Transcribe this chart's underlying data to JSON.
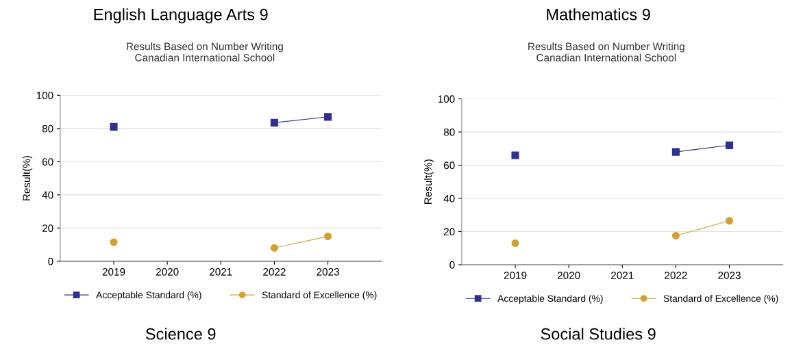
{
  "chart_data": [
    {
      "type": "line",
      "title": "English Language Arts 9",
      "subtitle": "Results Based on Number Writing\nCanadian International School",
      "ylabel": "Result(%)",
      "categories": [
        "2019",
        "2020",
        "2021",
        "2022",
        "2023"
      ],
      "ylim": [
        0,
        100
      ],
      "yticks": [
        0,
        20,
        40,
        60,
        80,
        100
      ],
      "grid": "y",
      "legend": "bottom",
      "annotations": [
        "Science 9"
      ],
      "series": [
        {
          "name": "Acceptable Standard (%)",
          "color": "#2e3192",
          "marker": "square",
          "values": [
            81,
            null,
            null,
            83.5,
            87
          ]
        },
        {
          "name": "Standard of Excellence (%)",
          "color": "#d4a030",
          "marker": "circle",
          "values": [
            11.5,
            null,
            null,
            8,
            15
          ]
        }
      ]
    },
    {
      "type": "line",
      "title": "Mathematics 9",
      "subtitle": "Results Based on Number Writing\nCanadian International School",
      "ylabel": "Result(%)",
      "categories": [
        "2019",
        "2020",
        "2021",
        "2022",
        "2023"
      ],
      "ylim": [
        0,
        100
      ],
      "yticks": [
        0,
        20,
        40,
        60,
        80,
        100
      ],
      "grid": "y",
      "legend": "bottom",
      "annotations": [
        "Social Studies 9"
      ],
      "series": [
        {
          "name": "Acceptable Standard (%)",
          "color": "#2e3192",
          "marker": "square",
          "values": [
            66,
            null,
            null,
            68,
            72
          ]
        },
        {
          "name": "Standard of Excellence (%)",
          "color": "#d4a030",
          "marker": "circle",
          "values": [
            13,
            null,
            null,
            17.5,
            26.5
          ]
        }
      ]
    }
  ]
}
